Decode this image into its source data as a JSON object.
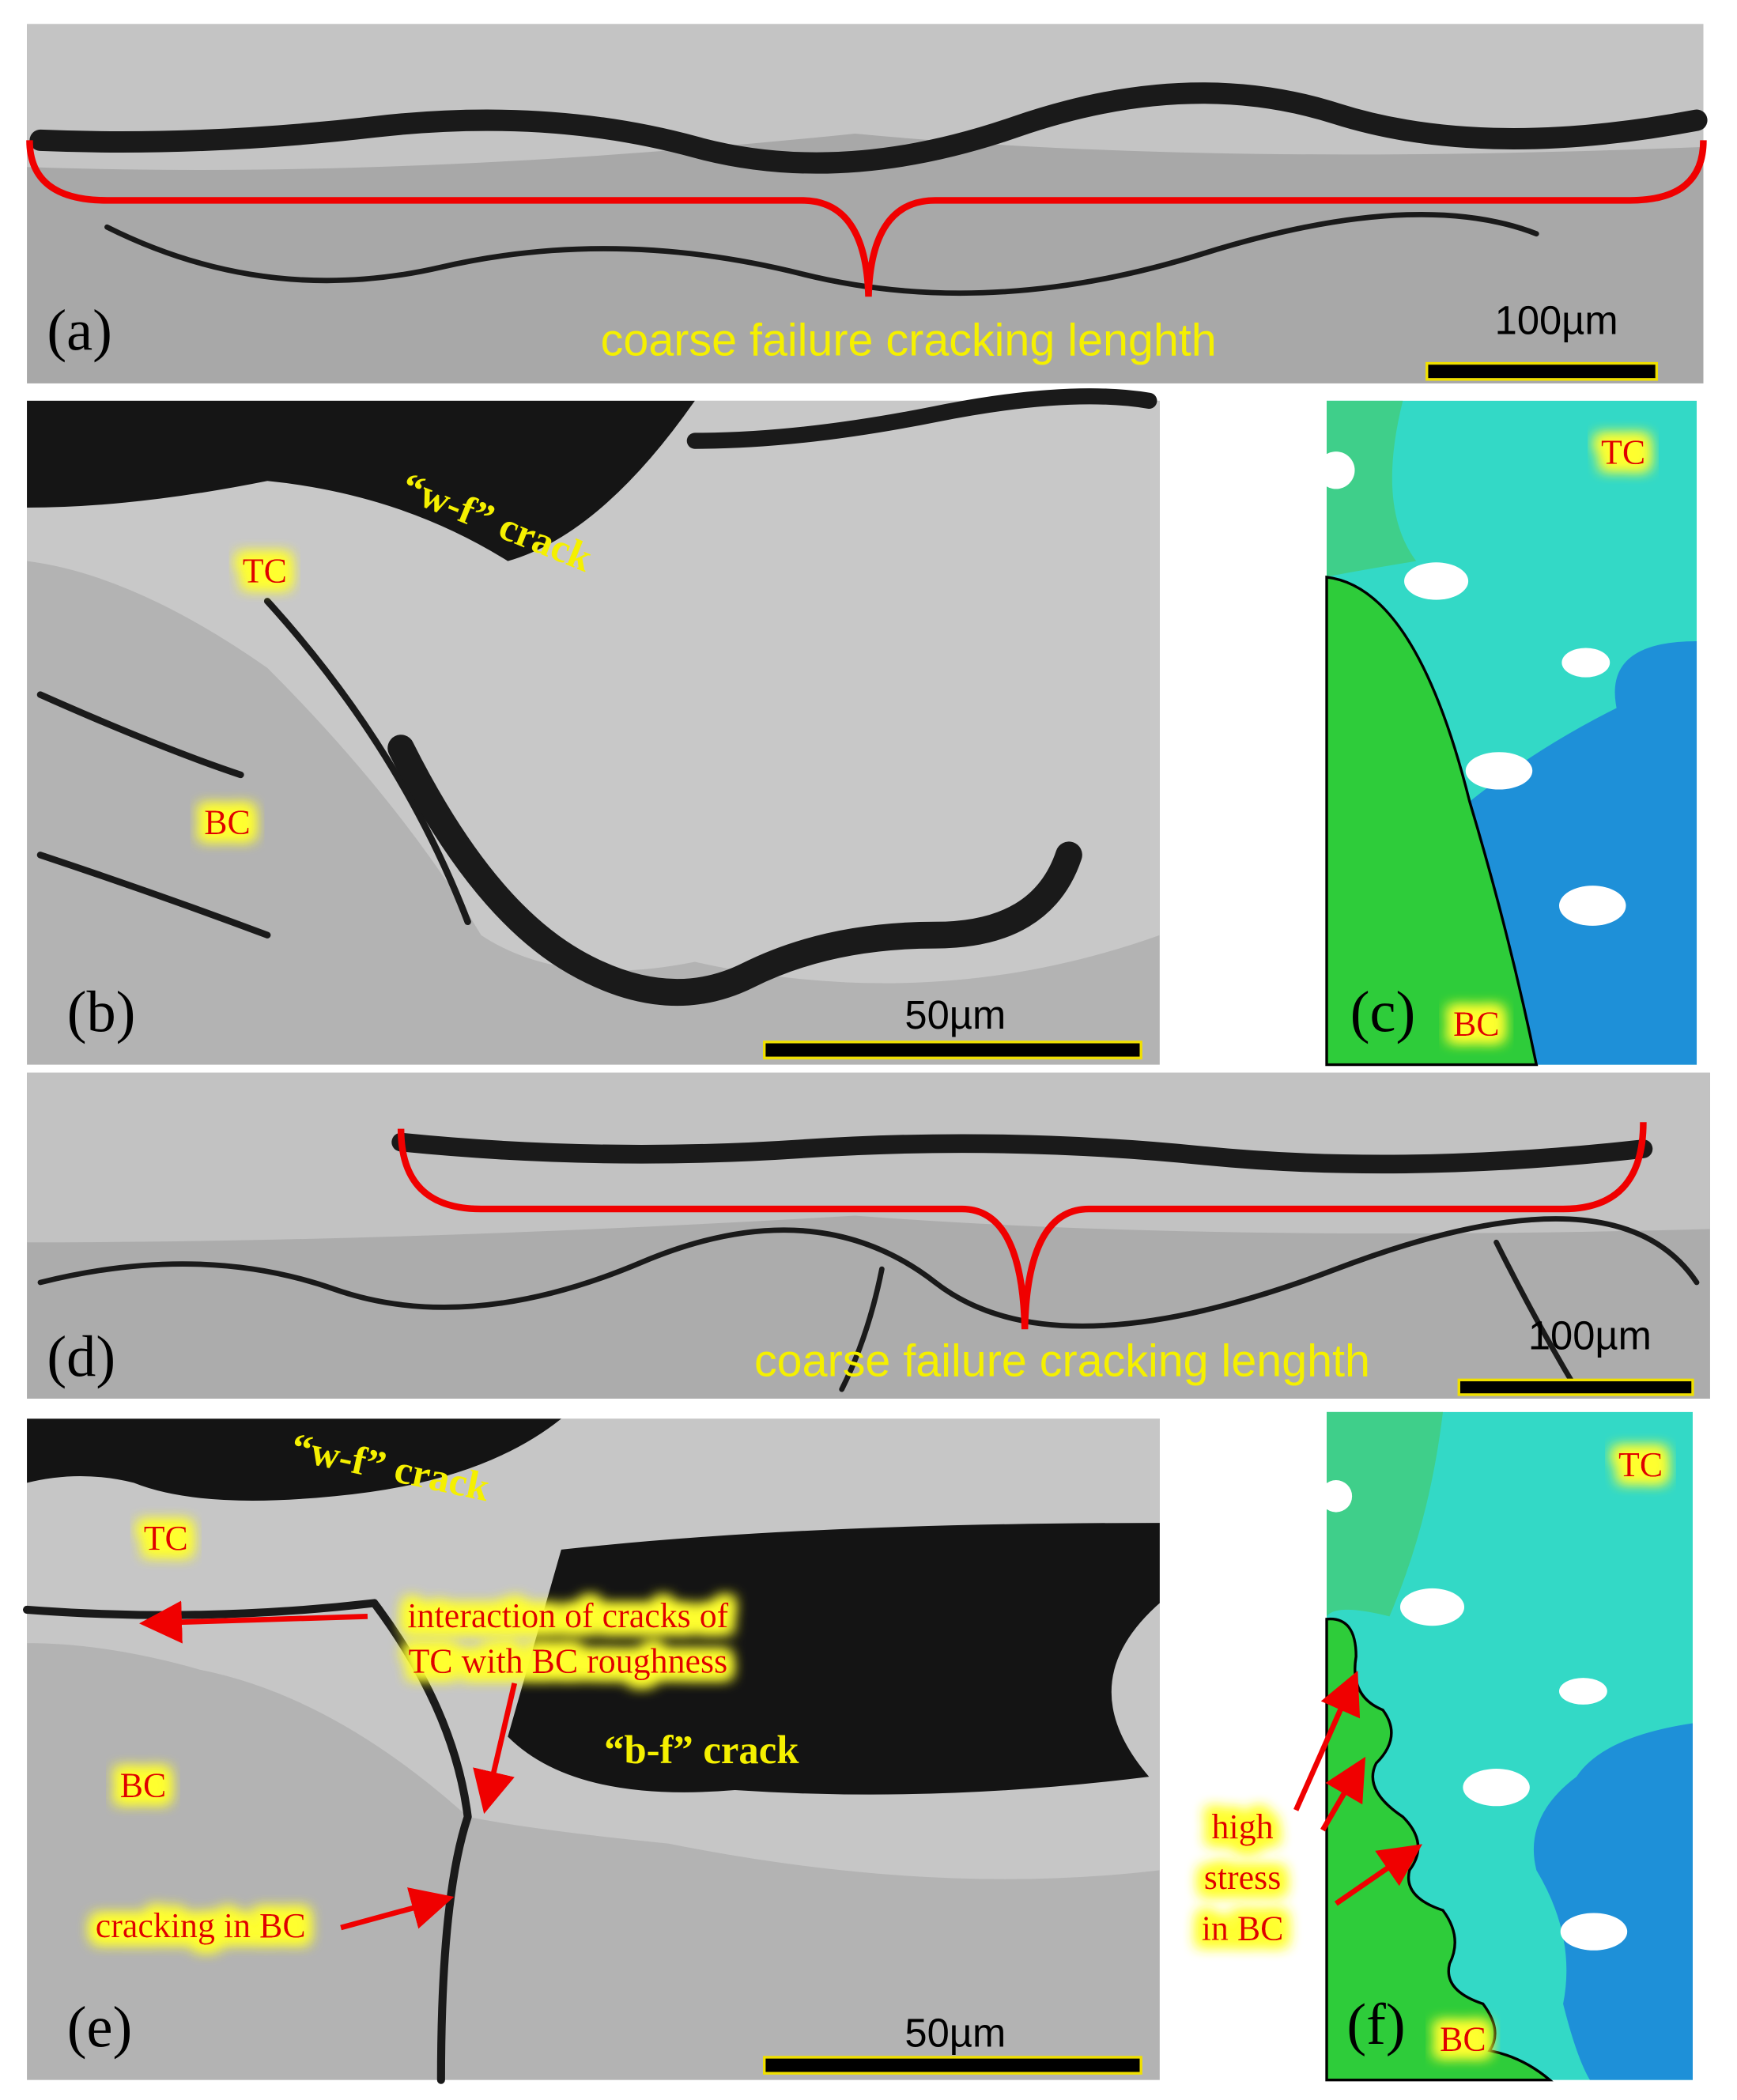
{
  "panels": [
    {
      "label": "(a)",
      "annotation": "coarse failure cracking lenghth",
      "scale_bar": "100µm"
    },
    {
      "label": "(b)",
      "crack": "“w-f” crack",
      "tc": "TC",
      "bc": "BC",
      "scale_bar": "50µm"
    },
    {
      "label": "(c)",
      "tc": "TC",
      "bc": "BC"
    },
    {
      "label": "(d)",
      "annotation": "coarse failure cracking lenghth",
      "scale_bar": "100µm"
    },
    {
      "label": "(e)",
      "crack_top": "“w-f” crack",
      "crack_mid": "“b-f” crack",
      "tc": "TC",
      "bc": "BC",
      "interaction": [
        "interaction of cracks of",
        "TC with BC roughness"
      ],
      "bc_crack": "cracking in BC",
      "scale_bar": "50µm"
    },
    {
      "label": "(f)",
      "tc": "TC",
      "bc": "BC",
      "high_stress": [
        "high",
        "stress",
        "in BC"
      ]
    }
  ]
}
